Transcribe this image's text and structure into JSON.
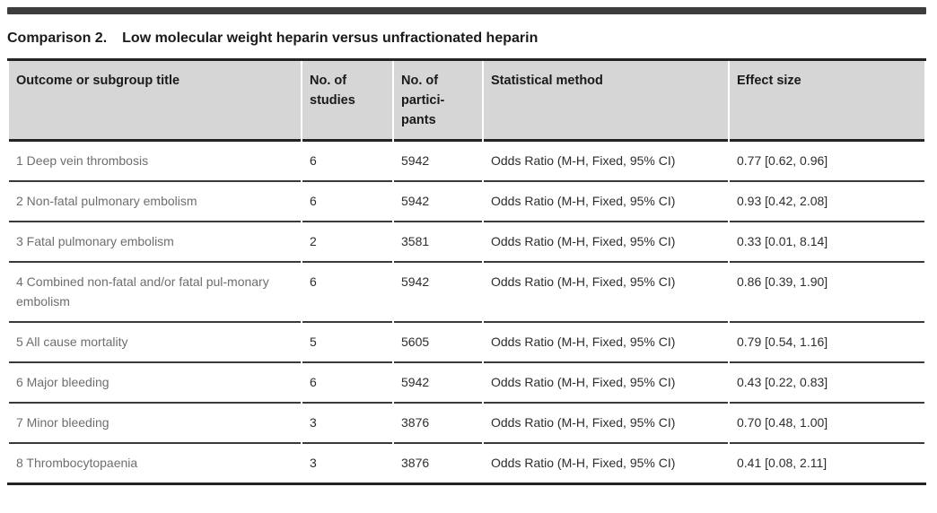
{
  "heading": {
    "label": "Comparison 2.",
    "title": "Low molecular weight heparin versus unfractionated heparin"
  },
  "colors": {
    "top_bar": "#3d3d3d",
    "header_background": "#d6d6d6",
    "rule_dark": "#232323",
    "row_rule": "#3a3a3a",
    "title_text": "#6e6e6e",
    "body_text": "#2d2d2d"
  },
  "table": {
    "columns": [
      {
        "label": "Outcome or subgroup title"
      },
      {
        "label": "No. of studies"
      },
      {
        "label": "No. of partici-pants"
      },
      {
        "label": "Statistical method"
      },
      {
        "label": "Effect size"
      }
    ],
    "rows": [
      {
        "title": "1 Deep vein thrombosis",
        "studies": "6",
        "participants": "5942",
        "method": "Odds Ratio (M-H, Fixed, 95% CI)",
        "effect": "0.77 [0.62, 0.96]"
      },
      {
        "title": "2 Non-fatal pulmonary embolism",
        "studies": "6",
        "participants": "5942",
        "method": "Odds Ratio (M-H, Fixed, 95% CI)",
        "effect": "0.93 [0.42, 2.08]"
      },
      {
        "title": "3 Fatal pulmonary embolism",
        "studies": "2",
        "participants": "3581",
        "method": "Odds Ratio (M-H, Fixed, 95% CI)",
        "effect": "0.33 [0.01, 8.14]"
      },
      {
        "title": "4 Combined non-fatal and/or fatal pul-monary embolism",
        "studies": "6",
        "participants": "5942",
        "method": "Odds Ratio (M-H, Fixed, 95% CI)",
        "effect": "0.86 [0.39, 1.90]"
      },
      {
        "title": "5 All cause mortality",
        "studies": "5",
        "participants": "5605",
        "method": "Odds Ratio (M-H, Fixed, 95% CI)",
        "effect": "0.79 [0.54, 1.16]"
      },
      {
        "title": "6 Major bleeding",
        "studies": "6",
        "participants": "5942",
        "method": "Odds Ratio (M-H, Fixed, 95% CI)",
        "effect": "0.43 [0.22, 0.83]"
      },
      {
        "title": "7 Minor bleeding",
        "studies": "3",
        "participants": "3876",
        "method": "Odds Ratio (M-H, Fixed, 95% CI)",
        "effect": "0.70 [0.48, 1.00]"
      },
      {
        "title": "8 Thrombocytopaenia",
        "studies": "3",
        "participants": "3876",
        "method": "Odds Ratio (M-H, Fixed, 95% CI)",
        "effect": "0.41 [0.08, 2.11]"
      }
    ]
  }
}
